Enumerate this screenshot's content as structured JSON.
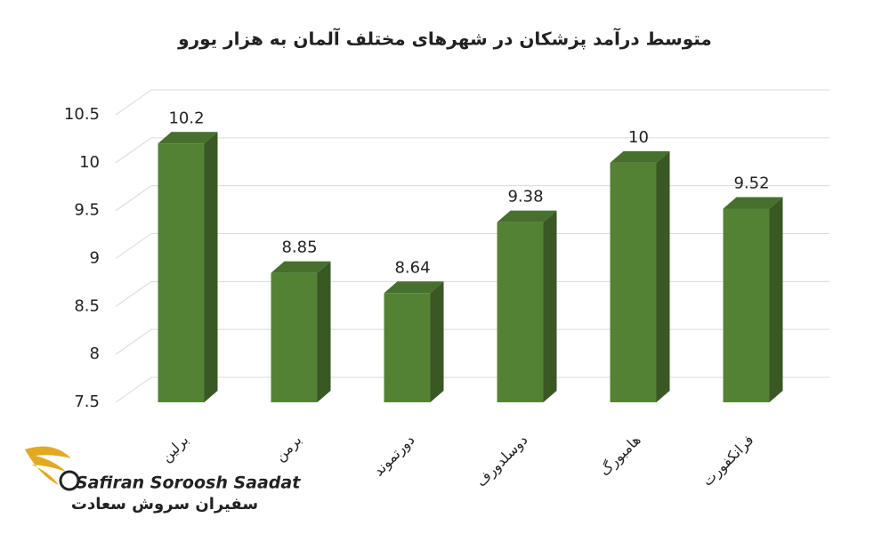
{
  "chart_data": {
    "type": "bar3d",
    "title": "متوسط درآمد پزشکان در شهرهای مختلف آلمان به هزار یورو",
    "categories": [
      "برلین",
      "برمن",
      "دورتموند",
      "دوسلدورف",
      "هامبورگ",
      "فرانکفورت"
    ],
    "values": [
      10.2,
      8.85,
      8.64,
      9.38,
      10,
      9.52
    ],
    "color": "#548235",
    "ylim": [
      7.5,
      10.5
    ],
    "yticks": [
      7.5,
      8,
      8.5,
      9,
      9.5,
      10,
      10.5
    ],
    "grid": true
  },
  "logo": {
    "latin": "Safiran Soroosh Saadat",
    "persian": "سفیران سروش سعادت"
  }
}
